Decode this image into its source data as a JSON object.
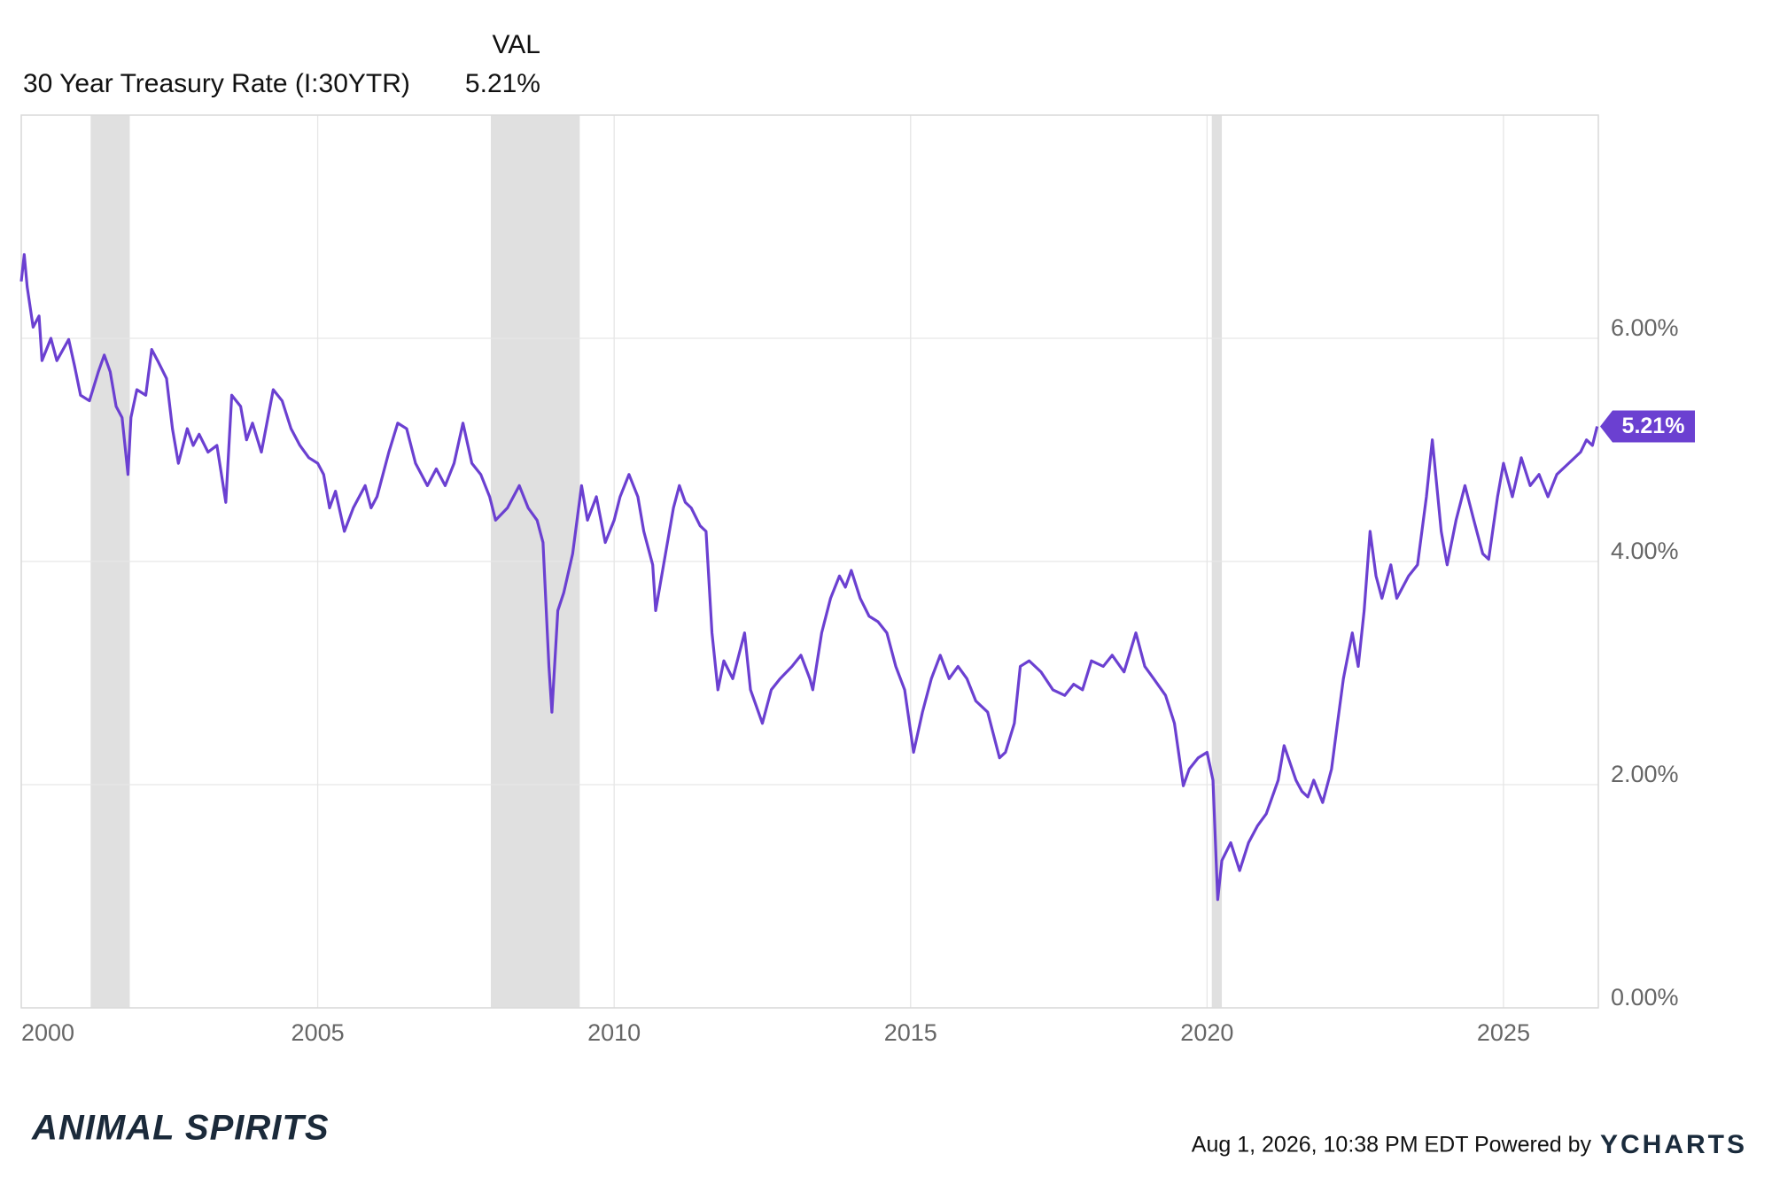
{
  "chart_data": {
    "type": "line",
    "header": {
      "column": "VAL",
      "name": "30 Year Treasury Rate (I:30YTR)",
      "value": 5.21,
      "value_label": "5.21%"
    },
    "series": [
      {
        "name": "30 Year Treasury Rate (I:30YTR)",
        "color": "#6b40d1",
        "x": [
          2000.0,
          2000.05,
          2000.1,
          2000.2,
          2000.3,
          2000.35,
          2000.5,
          2000.6,
          2000.8,
          2000.9,
          2001.0,
          2001.15,
          2001.3,
          2001.4,
          2001.5,
          2001.6,
          2001.7,
          2001.8,
          2001.85,
          2001.95,
          2002.1,
          2002.2,
          2002.3,
          2002.45,
          2002.55,
          2002.65,
          2002.8,
          2002.9,
          2003.0,
          2003.15,
          2003.3,
          2003.45,
          2003.55,
          2003.7,
          2003.8,
          2003.9,
          2004.05,
          2004.25,
          2004.4,
          2004.55,
          2004.7,
          2004.85,
          2005.0,
          2005.1,
          2005.2,
          2005.3,
          2005.45,
          2005.6,
          2005.8,
          2005.9,
          2006.0,
          2006.2,
          2006.35,
          2006.5,
          2006.65,
          2006.85,
          2007.0,
          2007.15,
          2007.3,
          2007.45,
          2007.6,
          2007.75,
          2007.9,
          2008.0,
          2008.2,
          2008.4,
          2008.55,
          2008.7,
          2008.8,
          2008.9,
          2008.95,
          2009.05,
          2009.15,
          2009.3,
          2009.45,
          2009.55,
          2009.7,
          2009.85,
          2010.0,
          2010.1,
          2010.25,
          2010.4,
          2010.5,
          2010.65,
          2010.7,
          2010.85,
          2011.0,
          2011.1,
          2011.2,
          2011.3,
          2011.45,
          2011.55,
          2011.65,
          2011.75,
          2011.85,
          2012.0,
          2012.2,
          2012.3,
          2012.5,
          2012.65,
          2012.8,
          2013.0,
          2013.15,
          2013.3,
          2013.35,
          2013.5,
          2013.65,
          2013.8,
          2013.9,
          2014.0,
          2014.15,
          2014.3,
          2014.45,
          2014.6,
          2014.75,
          2014.9,
          2015.05,
          2015.2,
          2015.35,
          2015.5,
          2015.65,
          2015.8,
          2015.95,
          2016.1,
          2016.3,
          2016.5,
          2016.6,
          2016.75,
          2016.85,
          2017.0,
          2017.2,
          2017.4,
          2017.6,
          2017.75,
          2017.9,
          2018.05,
          2018.25,
          2018.4,
          2018.6,
          2018.8,
          2018.95,
          2019.1,
          2019.3,
          2019.45,
          2019.6,
          2019.7,
          2019.85,
          2020.0,
          2020.1,
          2020.18,
          2020.25,
          2020.4,
          2020.55,
          2020.7,
          2020.85,
          2021.0,
          2021.2,
          2021.3,
          2021.5,
          2021.6,
          2021.7,
          2021.8,
          2021.95,
          2022.1,
          2022.2,
          2022.3,
          2022.45,
          2022.55,
          2022.65,
          2022.75,
          2022.85,
          2022.95,
          2023.1,
          2023.2,
          2023.4,
          2023.55,
          2023.7,
          2023.8,
          2023.95,
          2024.05,
          2024.2,
          2024.35,
          2024.5,
          2024.65,
          2024.75,
          2024.9,
          2025.0,
          2025.15,
          2025.3,
          2025.45,
          2025.6,
          2025.75,
          2025.9,
          2026.1,
          2026.3,
          2026.4,
          2026.5,
          2026.58
        ],
        "values": [
          6.51,
          6.75,
          6.46,
          6.1,
          6.2,
          5.8,
          6.0,
          5.8,
          5.99,
          5.75,
          5.49,
          5.44,
          5.7,
          5.85,
          5.7,
          5.39,
          5.29,
          4.78,
          5.29,
          5.54,
          5.49,
          5.9,
          5.8,
          5.64,
          5.19,
          4.88,
          5.19,
          5.04,
          5.14,
          4.98,
          5.04,
          4.53,
          5.49,
          5.39,
          5.09,
          5.24,
          4.98,
          5.54,
          5.44,
          5.19,
          5.04,
          4.93,
          4.88,
          4.78,
          4.48,
          4.63,
          4.27,
          4.48,
          4.68,
          4.48,
          4.58,
          4.98,
          5.24,
          5.19,
          4.88,
          4.68,
          4.83,
          4.68,
          4.88,
          5.24,
          4.88,
          4.78,
          4.58,
          4.37,
          4.48,
          4.68,
          4.48,
          4.37,
          4.17,
          3.06,
          2.65,
          3.56,
          3.72,
          4.07,
          4.68,
          4.37,
          4.58,
          4.17,
          4.37,
          4.58,
          4.78,
          4.58,
          4.27,
          3.97,
          3.56,
          4.02,
          4.48,
          4.68,
          4.53,
          4.48,
          4.32,
          4.27,
          3.36,
          2.85,
          3.11,
          2.95,
          3.36,
          2.85,
          2.55,
          2.85,
          2.95,
          3.06,
          3.16,
          2.95,
          2.85,
          3.36,
          3.67,
          3.87,
          3.77,
          3.92,
          3.67,
          3.51,
          3.46,
          3.36,
          3.06,
          2.85,
          2.29,
          2.65,
          2.95,
          3.16,
          2.95,
          3.06,
          2.95,
          2.75,
          2.65,
          2.24,
          2.29,
          2.55,
          3.06,
          3.11,
          3.01,
          2.85,
          2.8,
          2.9,
          2.85,
          3.11,
          3.06,
          3.16,
          3.01,
          3.36,
          3.06,
          2.95,
          2.8,
          2.55,
          1.99,
          2.14,
          2.24,
          2.29,
          2.04,
          0.97,
          1.32,
          1.48,
          1.23,
          1.48,
          1.63,
          1.74,
          2.04,
          2.35,
          2.04,
          1.94,
          1.89,
          2.04,
          1.84,
          2.14,
          2.55,
          2.95,
          3.36,
          3.06,
          3.56,
          4.27,
          3.87,
          3.67,
          3.97,
          3.67,
          3.87,
          3.97,
          4.58,
          5.09,
          4.27,
          3.97,
          4.37,
          4.68,
          4.37,
          4.07,
          4.02,
          4.58,
          4.88,
          4.58,
          4.93,
          4.68,
          4.78,
          4.58,
          4.78,
          4.88,
          4.98,
          5.09,
          5.04,
          5.21
        ]
      }
    ],
    "last_value": 5.21,
    "last_value_label": "5.21%",
    "recessions": [
      [
        2001.17,
        2001.83
      ],
      [
        2007.92,
        2009.42
      ],
      [
        2020.08,
        2020.25
      ]
    ],
    "recession_color": "#e0e0e0",
    "xlim": [
      2000,
      2026.6
    ],
    "xticks": [
      2000,
      2005,
      2010,
      2015,
      2020,
      2025
    ],
    "ylim": [
      0,
      8
    ],
    "yticks": [
      {
        "value": 0,
        "label": "0.00%"
      },
      {
        "value": 2,
        "label": "2.00%"
      },
      {
        "value": 4,
        "label": "4.00%"
      },
      {
        "value": 6,
        "label": "6.00%"
      }
    ],
    "grid": true,
    "footer": {
      "brand": "ANIMAL SPIRITS",
      "timestamp": "Aug 1, 2026, 10:38 PM EDT Powered by",
      "logo": "YCHARTS"
    }
  }
}
